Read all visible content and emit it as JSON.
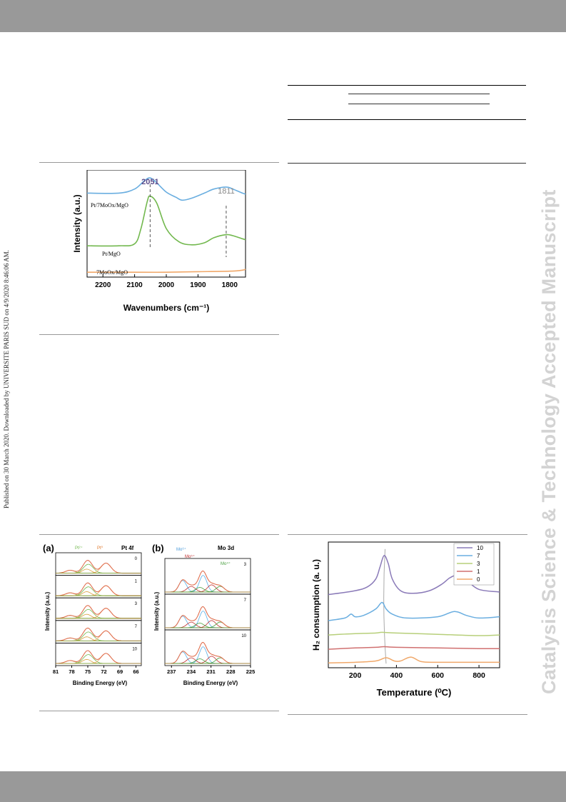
{
  "sidenote": "Published on 30 March 2020. Downloaded by UNIVERSITE PARIS SUD on 4/9/2020 8:46:06 AM.",
  "watermark": "Catalysis Science & Technology Accepted Manuscript",
  "colors": {
    "blue": "#6aaee0",
    "green": "#72b84e",
    "orange": "#f0a86a",
    "red": "#d07070",
    "purple": "#8a7ab8",
    "lime": "#b7cf7a"
  },
  "chart_data": [
    {
      "type": "line",
      "xlabel": "Wavenumbers (cm⁻¹)",
      "ylabel": "Intensity (a.u.)",
      "xlim": [
        2250,
        1750
      ],
      "xticks": [
        "2200",
        "2100",
        "2000",
        "1900",
        "1800"
      ],
      "annotations": [
        "2051",
        "1811"
      ],
      "series": [
        {
          "name": "Pt/7MoOx/MgO",
          "x": [
            2250,
            2150,
            2100,
            2070,
            2051,
            2030,
            2000,
            1970,
            1950,
            1920,
            1880,
            1850,
            1811,
            1790,
            1760,
            1750
          ],
          "y": [
            0.8,
            0.8,
            0.84,
            0.92,
            0.95,
            0.9,
            0.81,
            0.76,
            0.73,
            0.75,
            0.8,
            0.84,
            0.86,
            0.84,
            0.8,
            0.79
          ]
        },
        {
          "name": "Pt/MgO",
          "x": [
            2250,
            2150,
            2100,
            2080,
            2060,
            2051,
            2030,
            2000,
            1960,
            1920,
            1880,
            1850,
            1811,
            1790,
            1760,
            1750
          ],
          "y": [
            0.28,
            0.28,
            0.3,
            0.45,
            0.72,
            0.77,
            0.7,
            0.45,
            0.32,
            0.29,
            0.31,
            0.36,
            0.39,
            0.38,
            0.35,
            0.34
          ]
        },
        {
          "name": "7MoOx/MgO",
          "x": [
            2250,
            2100,
            2000,
            1900,
            1800,
            1760,
            1750
          ],
          "y": [
            0.02,
            0.02,
            0.02,
            0.025,
            0.03,
            0.04,
            0.05
          ]
        }
      ]
    },
    {
      "type": "line",
      "panel": "(a)",
      "title": "Pt 4f",
      "xlabel": "Binding Energy (eV)",
      "ylabel": "Intensity (a.u.)",
      "xlim": [
        81,
        65
      ],
      "xticks": [
        "81",
        "78",
        "75",
        "72",
        "69",
        "66"
      ],
      "peak_labels": [
        "Pt²⁺",
        "Pt⁰"
      ],
      "spectra": [
        "0",
        "1",
        "3",
        "7",
        "10"
      ],
      "peaks_eV": [
        74.8,
        71.6
      ]
    },
    {
      "type": "line",
      "panel": "(b)",
      "title": "Mo 3d",
      "xlabel": "Binding Energy (eV)",
      "ylabel": "Intensity (a.u.)",
      "xlim": [
        238,
        225
      ],
      "xticks": [
        "237",
        "234",
        "231",
        "228",
        "225"
      ],
      "peak_labels": [
        "Mo⁶⁺",
        "Mo⁵⁺",
        "Mo⁴⁺"
      ],
      "spectra": [
        "3",
        "7",
        "10"
      ],
      "peaks_eV": [
        235.2,
        232.1,
        230.4
      ]
    },
    {
      "type": "line",
      "xlabel": "Temperature (⁰C)",
      "ylabel": "H₂ consumption (a. u.)",
      "xlim": [
        70,
        900
      ],
      "xticks": [
        "200",
        "400",
        "600",
        "800"
      ],
      "legend_position": "top-right",
      "series": [
        {
          "name": "10",
          "color": "#8a7ab8",
          "x": [
            70,
            200,
            260,
            300,
            320,
            340,
            360,
            380,
            420,
            480,
            560,
            620,
            660,
            700,
            740,
            800,
            900
          ],
          "y": [
            5.4,
            5.7,
            6.0,
            6.6,
            7.5,
            8.4,
            7.8,
            6.6,
            5.7,
            5.5,
            5.7,
            6.2,
            6.7,
            6.9,
            6.5,
            5.8,
            5.6
          ]
        },
        {
          "name": "7",
          "color": "#6aaee0",
          "x": [
            70,
            150,
            180,
            200,
            240,
            300,
            330,
            350,
            380,
            450,
            600,
            680,
            740,
            800,
            900
          ],
          "y": [
            3.4,
            3.6,
            3.9,
            3.7,
            3.8,
            4.3,
            4.8,
            4.3,
            3.9,
            3.6,
            3.7,
            4.1,
            3.8,
            3.6,
            3.7
          ]
        },
        {
          "name": "3",
          "color": "#b7cf7a",
          "x": [
            70,
            200,
            300,
            330,
            400,
            600,
            800,
            900
          ],
          "y": [
            2.3,
            2.4,
            2.45,
            2.5,
            2.45,
            2.35,
            2.25,
            2.3
          ]
        },
        {
          "name": "1",
          "color": "#d07070",
          "x": [
            70,
            200,
            300,
            340,
            400,
            600,
            800,
            900
          ],
          "y": [
            1.2,
            1.3,
            1.35,
            1.4,
            1.35,
            1.3,
            1.25,
            1.25
          ]
        },
        {
          "name": "0",
          "color": "#f0a86a",
          "x": [
            70,
            200,
            300,
            350,
            390,
            420,
            470,
            520,
            600,
            800,
            900
          ],
          "y": [
            0.15,
            0.2,
            0.3,
            0.55,
            0.3,
            0.3,
            0.6,
            0.25,
            0.2,
            0.2,
            0.2
          ]
        }
      ]
    }
  ]
}
